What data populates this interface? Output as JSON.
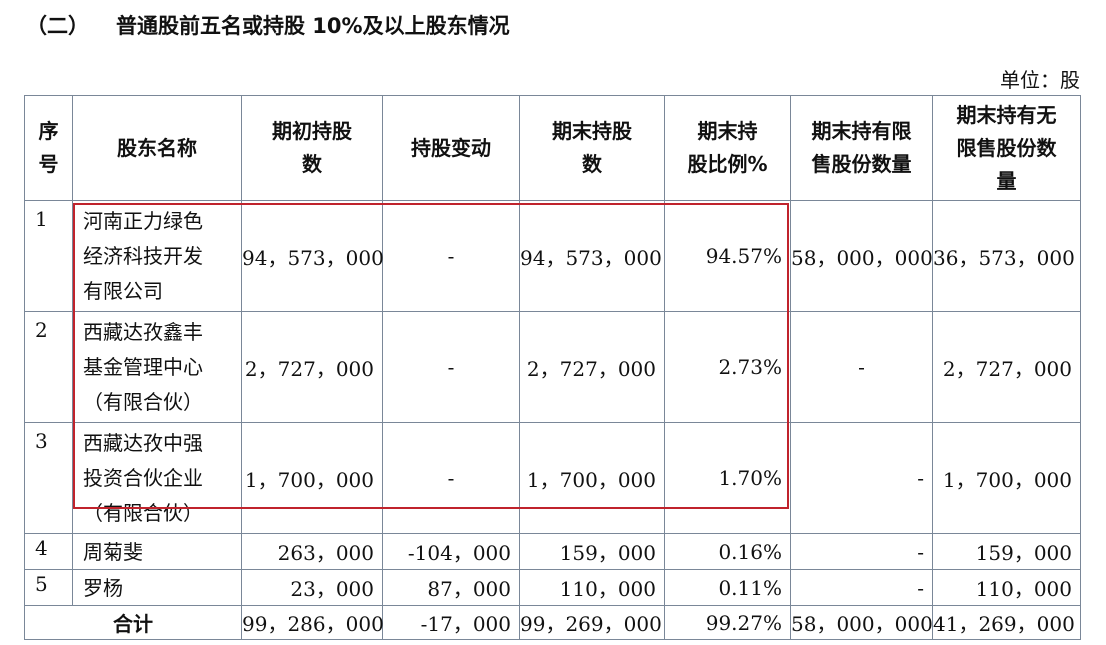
{
  "heading": {
    "number": "（二）",
    "title": "普通股前五名或持股 10%及以上股东情况"
  },
  "unit": "单位：股",
  "columns": [
    "序号",
    "股东名称",
    "期初持股数",
    "持股变动",
    "期末持股数",
    "期末持股比例%",
    "期末持有限售股份数量",
    "期末持有无限售股份数量"
  ],
  "columns_display": {
    "idx": "序\n号",
    "name": "股东名称",
    "begin": "期初持股\n数",
    "change": "持股变动",
    "end": "期末持股\n数",
    "ratio": "期末持\n股比例%",
    "restricted": "期末持有限\n售股份数量",
    "unrestricted": "期末持有无\n限售股份数\n量"
  },
  "rows": [
    {
      "idx": "1",
      "name": "河南正力绿色\n经济科技开发\n有限公司",
      "begin": "94，573，000",
      "change": "-",
      "end": "94，573，000",
      "ratio": "94.57%",
      "restricted": "58，000，000",
      "unrestricted": "36，573，000"
    },
    {
      "idx": "2",
      "name": "西藏达孜鑫丰\n基金管理中心\n（有限合伙）",
      "begin": "2，727，000",
      "change": "-",
      "end": "2，727，000",
      "ratio": "2.73%",
      "restricted": "-",
      "unrestricted": "2，727，000"
    },
    {
      "idx": "3",
      "name": "西藏达孜中强\n投资合伙企业\n（有限合伙）",
      "begin": "1，700，000",
      "change": "-",
      "end": "1，700，000",
      "ratio": "1.70%",
      "restricted": "-",
      "unrestricted": "1，700，000"
    },
    {
      "idx": "4",
      "name": "周菊斐",
      "begin": "263，000",
      "change": "-104，000",
      "end": "159，000",
      "ratio": "0.16%",
      "restricted": "-",
      "unrestricted": "159，000"
    },
    {
      "idx": "5",
      "name": "罗杨",
      "begin": "23，000",
      "change": "87，000",
      "end": "110，000",
      "ratio": "0.11%",
      "restricted": "-",
      "unrestricted": "110，000"
    }
  ],
  "total": {
    "label": "合计",
    "begin": "99，286，000",
    "change": "-17，000",
    "end": "99，269，000",
    "ratio": "99.27%",
    "restricted": "58，000，000",
    "unrestricted": "41，269，000"
  },
  "colors": {
    "border": "#7a8798",
    "highlight": "#c0232c"
  }
}
